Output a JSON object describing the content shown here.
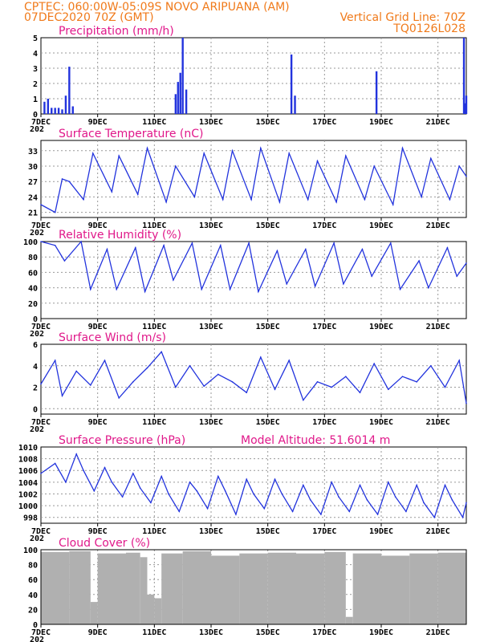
{
  "header": {
    "line1": "CPTEC:   060:00W-05:09S   NOVO ARIPUANA (AM)",
    "line2_left": "07DEC2020 70Z (GMT)",
    "line2_right": "Vertical Grid Line: 70Z",
    "line3_right": "TQ0126L028"
  },
  "colors": {
    "header": "#f07a1a",
    "title": "#e0188a",
    "series": "#2233dd",
    "cloud": "#b0b0b0",
    "grid": "#999999"
  },
  "x_axis": {
    "start": "2020-12-07T00:00Z",
    "end": "2020-12-22T00:00Z",
    "ticks": [
      "7DEC",
      "9DEC",
      "11DEC",
      "13DEC",
      "15DEC",
      "17DEC",
      "19DEC",
      "21DEC"
    ],
    "year_stub": "202"
  },
  "chart_data": [
    {
      "type": "bar",
      "title": "Precipitation (mm/h)",
      "ylim": [
        0,
        5
      ],
      "yticks": [
        0,
        1,
        2,
        3,
        4,
        5
      ],
      "series": [
        {
          "x": [
            "2020-12-07T03:00Z",
            "2020-12-07T06:00Z",
            "2020-12-07T09:00Z",
            "2020-12-07T12:00Z",
            "2020-12-07T15:00Z",
            "2020-12-07T18:00Z",
            "2020-12-07T21:00Z",
            "2020-12-08T00:00Z",
            "2020-12-08T03:00Z",
            "2020-12-11T18:00Z",
            "2020-12-11T20:00Z",
            "2020-12-11T22:00Z",
            "2020-12-12T00:00Z",
            "2020-12-12T03:00Z",
            "2020-12-15T20:00Z",
            "2020-12-15T23:00Z",
            "2020-12-18T20:00Z",
            "2020-12-21T22:00Z",
            "2020-12-21T23:00Z",
            "2020-12-22T00:00Z"
          ],
          "values": [
            0.8,
            1.0,
            0.4,
            0.4,
            0.4,
            0.3,
            1.2,
            3.1,
            0.5,
            1.3,
            2.1,
            2.7,
            5.0,
            1.6,
            3.9,
            1.2,
            2.8,
            5.0,
            0.7,
            1.2
          ]
        }
      ]
    },
    {
      "type": "line",
      "title": "Surface Temperature (nC)",
      "ylim": [
        20,
        35
      ],
      "yticks": [
        21,
        24,
        27,
        30,
        33
      ],
      "series": [
        {
          "x": [
            "2020-12-07T00:00Z",
            "2020-12-07T12:00Z",
            "2020-12-07T18:00Z",
            "2020-12-08T00:00Z",
            "2020-12-08T12:00Z",
            "2020-12-08T20:00Z",
            "2020-12-09T12:00Z",
            "2020-12-09T18:00Z",
            "2020-12-10T10:00Z",
            "2020-12-10T18:00Z",
            "2020-12-11T10:00Z",
            "2020-12-11T18:00Z",
            "2020-12-12T10:00Z",
            "2020-12-12T18:00Z",
            "2020-12-13T10:00Z",
            "2020-12-13T18:00Z",
            "2020-12-14T10:00Z",
            "2020-12-14T18:00Z",
            "2020-12-15T10:00Z",
            "2020-12-15T18:00Z",
            "2020-12-16T10:00Z",
            "2020-12-16T18:00Z",
            "2020-12-17T10:00Z",
            "2020-12-17T18:00Z",
            "2020-12-18T10:00Z",
            "2020-12-18T18:00Z",
            "2020-12-19T10:00Z",
            "2020-12-19T18:00Z",
            "2020-12-20T10:00Z",
            "2020-12-20T18:00Z",
            "2020-12-21T10:00Z",
            "2020-12-21T18:00Z",
            "2020-12-22T00:00Z"
          ],
          "values": [
            22.5,
            21.0,
            27.5,
            27.0,
            23.5,
            32.5,
            25.0,
            32.0,
            24.5,
            33.5,
            23.0,
            30.0,
            24.0,
            32.5,
            23.5,
            33.0,
            23.5,
            33.5,
            23.0,
            32.5,
            23.5,
            31.0,
            23.0,
            32.0,
            23.5,
            30.0,
            22.5,
            33.5,
            24.0,
            31.5,
            23.5,
            30.0,
            28.0
          ]
        }
      ]
    },
    {
      "type": "line",
      "title": "Relative Humidity (%)",
      "ylim": [
        0,
        100
      ],
      "yticks": [
        0,
        20,
        40,
        60,
        80,
        100
      ],
      "series": [
        {
          "x": [
            "2020-12-07T00:00Z",
            "2020-12-07T12:00Z",
            "2020-12-07T20:00Z",
            "2020-12-08T10:00Z",
            "2020-12-08T18:00Z",
            "2020-12-09T08:00Z",
            "2020-12-09T16:00Z",
            "2020-12-10T08:00Z",
            "2020-12-10T16:00Z",
            "2020-12-11T08:00Z",
            "2020-12-11T16:00Z",
            "2020-12-12T08:00Z",
            "2020-12-12T16:00Z",
            "2020-12-13T08:00Z",
            "2020-12-13T16:00Z",
            "2020-12-14T08:00Z",
            "2020-12-14T16:00Z",
            "2020-12-15T08:00Z",
            "2020-12-15T16:00Z",
            "2020-12-16T08:00Z",
            "2020-12-16T16:00Z",
            "2020-12-17T08:00Z",
            "2020-12-17T16:00Z",
            "2020-12-18T08:00Z",
            "2020-12-18T16:00Z",
            "2020-12-19T08:00Z",
            "2020-12-19T16:00Z",
            "2020-12-20T08:00Z",
            "2020-12-20T16:00Z",
            "2020-12-21T08:00Z",
            "2020-12-21T16:00Z",
            "2020-12-22T00:00Z"
          ],
          "values": [
            100,
            95,
            75,
            100,
            38,
            90,
            38,
            92,
            35,
            95,
            50,
            98,
            38,
            95,
            38,
            98,
            35,
            88,
            45,
            90,
            42,
            98,
            45,
            90,
            55,
            98,
            38,
            75,
            40,
            92,
            55,
            72
          ]
        }
      ]
    },
    {
      "type": "line",
      "title": "Surface Wind (m/s)",
      "ylim": [
        -0.5,
        6
      ],
      "yticks": [
        0,
        2,
        4,
        6
      ],
      "series": [
        {
          "x": [
            "2020-12-07T00:00Z",
            "2020-12-07T12:00Z",
            "2020-12-07T18:00Z",
            "2020-12-08T06:00Z",
            "2020-12-08T18:00Z",
            "2020-12-09T06:00Z",
            "2020-12-09T18:00Z",
            "2020-12-10T06:00Z",
            "2020-12-10T18:00Z",
            "2020-12-11T06:00Z",
            "2020-12-11T18:00Z",
            "2020-12-12T06:00Z",
            "2020-12-12T18:00Z",
            "2020-12-13T06:00Z",
            "2020-12-13T18:00Z",
            "2020-12-14T06:00Z",
            "2020-12-14T18:00Z",
            "2020-12-15T06:00Z",
            "2020-12-15T18:00Z",
            "2020-12-16T06:00Z",
            "2020-12-16T18:00Z",
            "2020-12-17T06:00Z",
            "2020-12-17T18:00Z",
            "2020-12-18T06:00Z",
            "2020-12-18T18:00Z",
            "2020-12-19T06:00Z",
            "2020-12-19T18:00Z",
            "2020-12-20T06:00Z",
            "2020-12-20T18:00Z",
            "2020-12-21T06:00Z",
            "2020-12-21T18:00Z",
            "2020-12-22T00:00Z"
          ],
          "values": [
            2.3,
            4.5,
            1.2,
            3.5,
            2.2,
            4.5,
            1.0,
            2.5,
            3.8,
            5.3,
            2.0,
            4.0,
            2.1,
            3.2,
            2.5,
            1.5,
            4.8,
            1.8,
            4.5,
            0.8,
            2.5,
            2.0,
            3.0,
            1.5,
            4.2,
            1.8,
            3.0,
            2.5,
            4.0,
            2.0,
            4.5,
            0.5
          ]
        }
      ]
    },
    {
      "type": "line",
      "title": "Surface Pressure (hPa)",
      "annotation": "Model Altitude: 51.6014 m",
      "ylim": [
        997,
        1010
      ],
      "yticks": [
        998,
        1000,
        1002,
        1004,
        1006,
        1008,
        1010
      ],
      "series": [
        {
          "x": [
            "2020-12-07T00:00Z",
            "2020-12-07T12:00Z",
            "2020-12-07T21:00Z",
            "2020-12-08T06:00Z",
            "2020-12-08T12:00Z",
            "2020-12-08T21:00Z",
            "2020-12-09T06:00Z",
            "2020-12-09T12:00Z",
            "2020-12-09T21:00Z",
            "2020-12-10T06:00Z",
            "2020-12-10T12:00Z",
            "2020-12-10T21:00Z",
            "2020-12-11T06:00Z",
            "2020-12-11T12:00Z",
            "2020-12-11T21:00Z",
            "2020-12-12T06:00Z",
            "2020-12-12T12:00Z",
            "2020-12-12T21:00Z",
            "2020-12-13T06:00Z",
            "2020-12-13T12:00Z",
            "2020-12-13T21:00Z",
            "2020-12-14T06:00Z",
            "2020-12-14T12:00Z",
            "2020-12-14T21:00Z",
            "2020-12-15T06:00Z",
            "2020-12-15T12:00Z",
            "2020-12-15T21:00Z",
            "2020-12-16T06:00Z",
            "2020-12-16T12:00Z",
            "2020-12-16T21:00Z",
            "2020-12-17T06:00Z",
            "2020-12-17T12:00Z",
            "2020-12-17T21:00Z",
            "2020-12-18T06:00Z",
            "2020-12-18T12:00Z",
            "2020-12-18T21:00Z",
            "2020-12-19T06:00Z",
            "2020-12-19T12:00Z",
            "2020-12-19T21:00Z",
            "2020-12-20T06:00Z",
            "2020-12-20T12:00Z",
            "2020-12-20T21:00Z",
            "2020-12-21T06:00Z",
            "2020-12-21T12:00Z",
            "2020-12-21T21:00Z",
            "2020-12-22T00:00Z"
          ],
          "values": [
            1005.5,
            1007.2,
            1004.0,
            1008.8,
            1006.0,
            1002.5,
            1006.5,
            1004.0,
            1001.5,
            1005.5,
            1003.0,
            1000.5,
            1005.0,
            1002.0,
            999.0,
            1004.0,
            1002.5,
            999.5,
            1005.0,
            1002.5,
            998.5,
            1004.5,
            1002.0,
            999.5,
            1004.5,
            1002.0,
            999.0,
            1003.5,
            1001.0,
            998.5,
            1004.0,
            1001.5,
            999.0,
            1003.5,
            1001.0,
            998.5,
            1004.0,
            1001.5,
            999.0,
            1003.5,
            1000.5,
            998.0,
            1003.5,
            1001.0,
            998.0,
            1000.5
          ]
        }
      ]
    },
    {
      "type": "bar",
      "title": "Cloud Cover (%)",
      "ylim": [
        0,
        100
      ],
      "yticks": [
        0,
        20,
        40,
        60,
        80,
        100
      ],
      "series": [
        {
          "x": [
            "2020-12-07T00:00Z",
            "2020-12-08T00:00Z",
            "2020-12-08T18:00Z",
            "2020-12-09T00:00Z",
            "2020-12-10T00:00Z",
            "2020-12-10T12:00Z",
            "2020-12-10T18:00Z",
            "2020-12-11T00:00Z",
            "2020-12-11T06:00Z",
            "2020-12-12T00:00Z",
            "2020-12-13T00:00Z",
            "2020-12-14T00:00Z",
            "2020-12-15T00:00Z",
            "2020-12-16T00:00Z",
            "2020-12-17T00:00Z",
            "2020-12-17T18:00Z",
            "2020-12-18T00:00Z",
            "2020-12-19T00:00Z",
            "2020-12-20T00:00Z",
            "2020-12-21T00:00Z",
            "2020-12-22T00:00Z"
          ],
          "values": [
            97,
            98,
            30,
            95,
            96,
            90,
            40,
            35,
            95,
            98,
            92,
            95,
            96,
            95,
            97,
            10,
            95,
            92,
            95,
            96,
            98
          ]
        }
      ]
    }
  ]
}
